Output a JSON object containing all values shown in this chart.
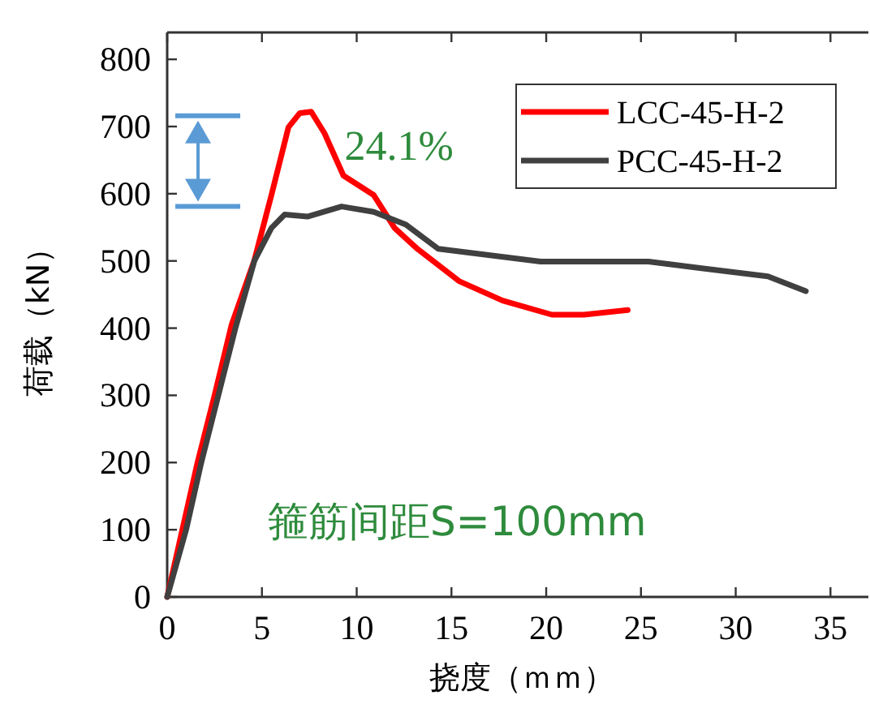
{
  "chart_data": {
    "type": "line",
    "xlabel": "挠度（ｍｍ）",
    "ylabel": "荷载（kN）",
    "xlim": [
      0,
      37
    ],
    "ylim": [
      0,
      840
    ],
    "xticks": [
      0,
      5,
      10,
      15,
      20,
      25,
      30,
      35
    ],
    "yticks": [
      0,
      100,
      200,
      300,
      400,
      500,
      600,
      700,
      800
    ],
    "legend": "top right",
    "grid": false,
    "marker": "none",
    "line_style": "solid",
    "annotations": [
      {
        "text": "24.1%",
        "x": 8.5,
        "y": 650
      },
      "箍筋间距S=100mm"
    ],
    "series": [
      {
        "name": "LCC-45-H-2",
        "color": "#ff0000",
        "x": [
          0,
          0.8,
          1.6,
          2.5,
          3.4,
          4.6,
          5.5,
          6.4,
          7.0,
          7.6,
          8.3,
          9.3,
          10.9,
          12.0,
          13.2,
          15.4,
          17.7,
          20.3,
          22,
          24.3
        ],
        "values": [
          0,
          100,
          200,
          300,
          405,
          501,
          598,
          699,
          720,
          722,
          690,
          627,
          598,
          549,
          518,
          470,
          441,
          420,
          420,
          427
        ]
      },
      {
        "name": "PCC-45-H-2",
        "color": "#404040",
        "x": [
          0,
          1,
          1.8,
          2.7,
          3.6,
          4.6,
          5.5,
          6.2,
          7.4,
          9.2,
          10.9,
          12.6,
          14.3,
          19.7,
          25.4,
          28.2,
          31.7,
          33.7
        ],
        "values": [
          0,
          100,
          200,
          300,
          400,
          500,
          549,
          569,
          566,
          581,
          573,
          554,
          518,
          499,
          499,
          489,
          477,
          455
        ]
      }
    ]
  }
}
